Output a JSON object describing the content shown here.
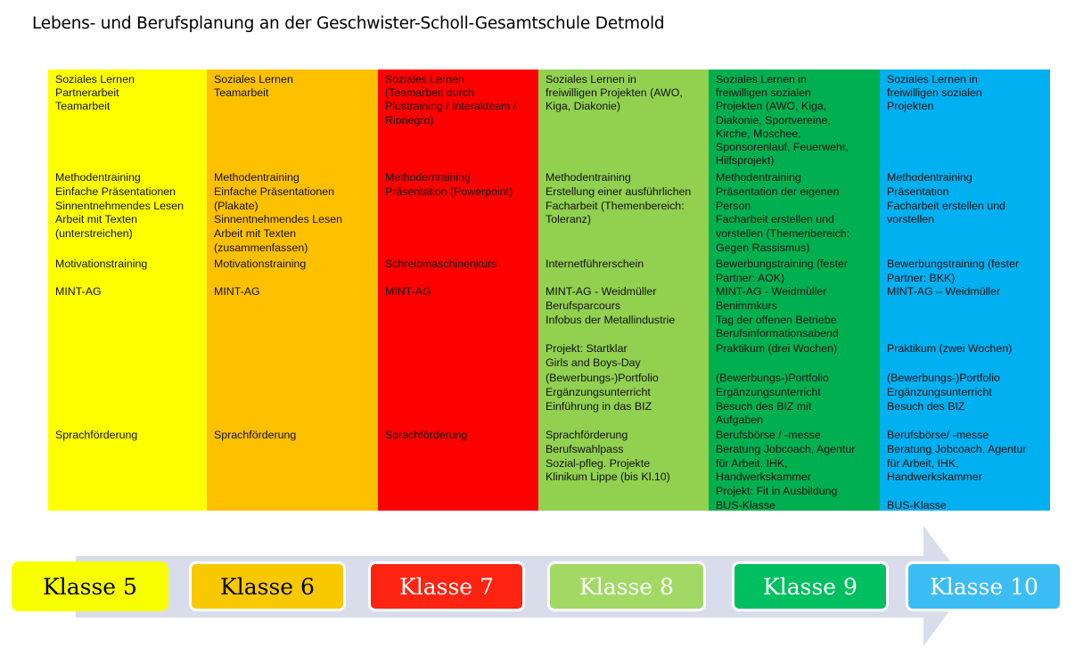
{
  "title": "Lebens- und Berufsplanung an der Geschwister-Scholl-Gesamtschule Detmold",
  "columns": [
    {
      "color": "#FFFF00",
      "groups": {
        "social": [
          "Soziales Lernen",
          "Partnerarbeit",
          "Teamarbeit"
        ],
        "method": [
          "Methodentraining",
          "Einfache Präsentationen",
          "Sinnentnehmendes Lesen",
          "Arbeit mit Texten",
          "(unterstreichen)"
        ],
        "motivation": [
          "Motivationstraining"
        ],
        "mint": [
          "MINT-AG"
        ],
        "praktikum": [],
        "portfolio": [],
        "sprach": [
          "Sprachförderung"
        ]
      }
    },
    {
      "color": "#FFC000",
      "groups": {
        "social": [
          "Soziales Lernen",
          "Teamarbeit"
        ],
        "method": [
          "Methodentraining",
          "Einfache Präsentationen",
          "(Plakate)",
          "Sinnentnehmendes Lesen",
          "Arbeit mit Texten",
          "(zusammenfassen)"
        ],
        "motivation": [
          "Motivationstraining"
        ],
        "mint": [
          "MINT-AG"
        ],
        "praktikum": [],
        "portfolio": [],
        "sprach": [
          "Sprachförderung"
        ]
      }
    },
    {
      "color": "#FF0000",
      "groups": {
        "social": [
          "Soziales Lernen",
          "(Teamarbeit durch",
          "Plustraining / Interakteam /",
          "Rionegro)"
        ],
        "method": [
          "Methodentraining",
          "Präsentation (Powerpoint)"
        ],
        "motivation": [
          "Schreibmaschinenkurs"
        ],
        "mint": [
          "MINT-AG"
        ],
        "praktikum": [],
        "portfolio": [],
        "sprach": [
          "Sprachförderung"
        ]
      }
    },
    {
      "color": "#92D050",
      "groups": {
        "social": [
          "Soziales Lernen in",
          "freiwilligen Projekten (AWO,",
          "Kiga, Diakonie)"
        ],
        "method": [
          "Methodentraining",
          "Erstellung einer ausführlichen",
          "Facharbeit (Themenbereich:",
          "Toleranz)"
        ],
        "motivation": [
          "Internetführerschein"
        ],
        "mint": [
          "MINT-AG - Weidmüller",
          "Berufsparcours",
          "Infobus der Metallindustrie"
        ],
        "praktikum": [
          "Projekt: Startklar",
          "Girls and Boys-Day"
        ],
        "portfolio": [
          "(Bewerbungs-)Portfolio",
          "Ergänzungsunterricht",
          "Einführung in das BIZ"
        ],
        "sprach": [
          "Sprachförderung",
          "Berufswahlpass",
          "Sozial-pfleg. Projekte",
          "Klinikum Lippe (bis Kl.10)"
        ]
      }
    },
    {
      "color": "#00B050",
      "groups": {
        "social": [
          "Soziales Lernen in",
          "freiwilligen sozialen",
          "Projekten (AWO, Kiga,",
          "Diakonie, Sportvereine,",
          "Kirche, Moschee,",
          "Sponsorenlauf, Feuerwehr,",
          "Hilfsprojekt)"
        ],
        "method": [
          "Methodentraining",
          "Präsentation der eigenen",
          "Person",
          "Facharbeit erstellen und",
          "vorstellen (Themenbereich:",
          "Gegen Rassismus)"
        ],
        "motivation": [
          "Bewerbungstraining (fester",
          "Partner: AOK)"
        ],
        "mint": [
          "MINT-AG - Weidmüller",
          "Benimmkurs",
          "Tag der offenen Betriebe",
          "Berufsinformationsabend"
        ],
        "praktikum": [
          "Praktikum (drei Wochen)"
        ],
        "portfolio": [
          "(Bewerbungs-)Portfolio",
          "Ergänzungsunterricht",
          "Besuch des BIZ mit",
          "Aufgaben"
        ],
        "sprach": [
          "Berufsbörse / -messe",
          "Beratung Jobcoach, Agentur",
          "für Arbeit, IHK,",
          "Handwerkskammer",
          "Projekt: Fit in Ausbildung",
          "BUS-Klasse"
        ]
      }
    },
    {
      "color": "#00B0F0",
      "groups": {
        "social": [
          "Soziales Lernen in",
          "freiwilligen sozialen",
          "Projekten"
        ],
        "method": [
          "Methodentraining",
          "Präsentation",
          "Facharbeit erstellen und",
          "vorstellen"
        ],
        "motivation": [
          "Bewerbungstraining (fester",
          "Partner: BKK)"
        ],
        "mint": [
          "MINT-AG – Weidmüller"
        ],
        "praktikum": [
          "Praktikum (zwei Wochen)"
        ],
        "portfolio": [
          "(Bewerbungs-)Portfolio",
          "Ergänzungsunterricht",
          "Besuch des BIZ"
        ],
        "sprach": [
          "Berufsbörse/ -messe",
          "Beratung Jobcoach, Agentur",
          "für Arbeit, IHK,",
          "Handwerkskammer",
          "",
          "BUS-Klasse"
        ]
      }
    }
  ],
  "timeline": {
    "arrow_color": "#D9DDEB",
    "steps": [
      {
        "label": "Klasse 5",
        "color": "#F7FF00",
        "text_color": "#000000"
      },
      {
        "label": "Klasse 6",
        "color": "#F8C900",
        "text_color": "#000000"
      },
      {
        "label": "Klasse 7",
        "color": "#FF2312",
        "text_color": "#FFFFFF"
      },
      {
        "label": "Klasse 8",
        "color": "#A2D964",
        "text_color": "#FFFFFF"
      },
      {
        "label": "Klasse 9",
        "color": "#00BF60",
        "text_color": "#FFFFFF"
      },
      {
        "label": "Klasse 10",
        "color": "#3BBDF4",
        "text_color": "#FFFFFF"
      }
    ]
  }
}
